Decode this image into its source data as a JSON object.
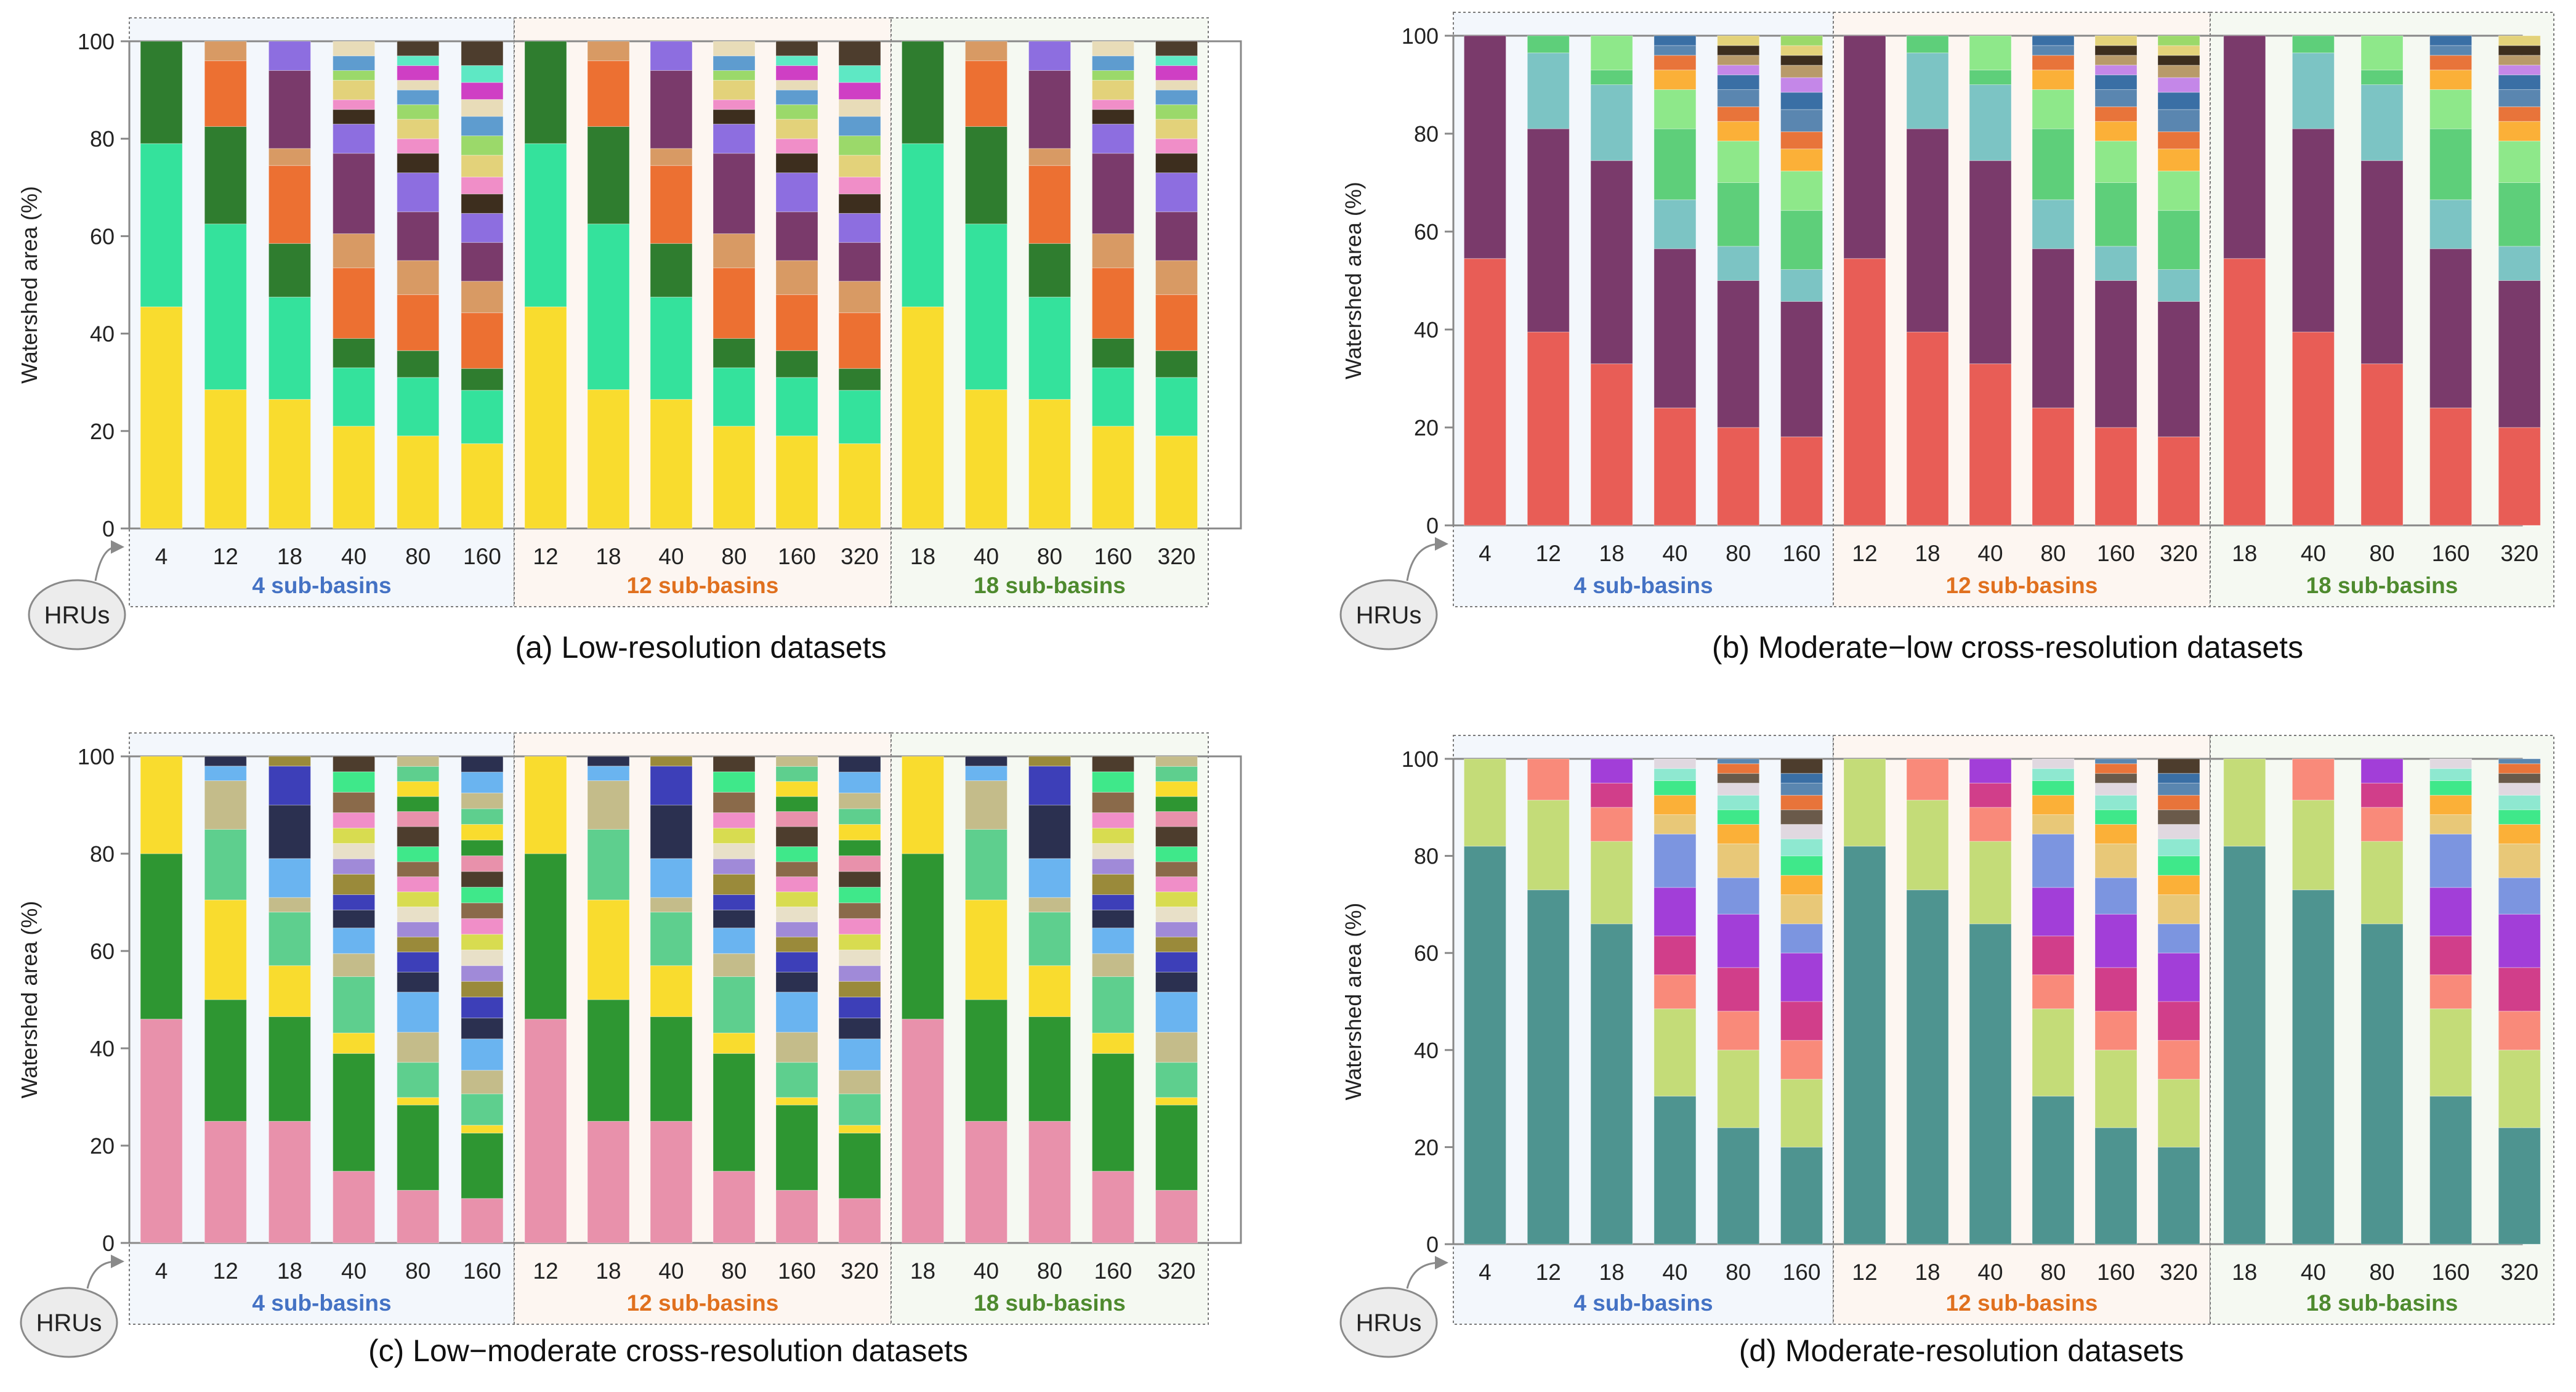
{
  "panels": [
    {
      "id": "a",
      "caption": "(a) Low-resolution datasets",
      "ylabel": "Watershed area (%)",
      "yticks": [
        0,
        20,
        40,
        60,
        80,
        100
      ],
      "ylim": [
        0,
        100
      ],
      "hru_badge": "HRUs",
      "groups": [
        {
          "label": "4 sub-basins",
          "color": "#4472c4",
          "bg": "#f3f7fc",
          "hrus": [
            "4",
            "12",
            "18",
            "40",
            "80",
            "160"
          ]
        },
        {
          "label": "12 sub-basins",
          "color": "#e0701e",
          "bg": "#fdf6f1",
          "hrus": [
            "12",
            "18",
            "40",
            "80",
            "160",
            "320"
          ]
        },
        {
          "label": "18 sub-basins",
          "color": "#4e8a2e",
          "bg": "#f5f9f2",
          "hrus": [
            "18",
            "40",
            "80",
            "160",
            "320"
          ]
        }
      ],
      "palette": [
        "#f9dc2e",
        "#34e29c",
        "#2f7d2f",
        "#ec7032",
        "#d89a64",
        "#7a3a6b",
        "#8d6ee0",
        "#3d2e1e",
        "#f08ec8",
        "#e3d27a",
        "#9bd96a",
        "#5e9ccf",
        "#e8dcb8",
        "#cf3fc4",
        "#5ee8c4",
        "#4d3d2d"
      ],
      "bars": [
        [
          45.5,
          33.5,
          21
        ],
        [
          28.5,
          34,
          20,
          13.5,
          4
        ],
        [
          26.5,
          21,
          11,
          16,
          3.5,
          16,
          6
        ],
        [
          21,
          12,
          6,
          14.5,
          7,
          16.5,
          6,
          3,
          2,
          4,
          2,
          3,
          3
        ],
        [
          19,
          12,
          5.5,
          11.5,
          7,
          10,
          8,
          4,
          3,
          4,
          3,
          3,
          2,
          3,
          2,
          3
        ],
        [
          17.5,
          11,
          4.5,
          11.5,
          6.5,
          8,
          6,
          4,
          3.5,
          4.5,
          4,
          4,
          3.5,
          3.5,
          3.5,
          5
        ]
      ]
    },
    {
      "id": "b",
      "caption": "(b) Moderate−low cross-resolution datasets",
      "ylabel": "Watershed area (%)",
      "yticks": [
        0,
        20,
        40,
        60,
        80,
        100
      ],
      "ylim": [
        0,
        100
      ],
      "hru_badge": "HRUs",
      "groups": [
        {
          "label": "4 sub-basins",
          "color": "#4472c4",
          "bg": "#f3f7fc",
          "hrus": [
            "4",
            "12",
            "18",
            "40",
            "80",
            "160"
          ]
        },
        {
          "label": "12 sub-basins",
          "color": "#e0701e",
          "bg": "#fdf6f1",
          "hrus": [
            "12",
            "18",
            "40",
            "80",
            "160",
            "320"
          ]
        },
        {
          "label": "18 sub-basins",
          "color": "#4e8a2e",
          "bg": "#f5f9f2",
          "hrus": [
            "18",
            "40",
            "80",
            "160",
            "320"
          ]
        }
      ],
      "palette": [
        "#e85d56",
        "#7a3a6b",
        "#7cc4c4",
        "#5ecf7a",
        "#8ee88a",
        "#fbb038",
        "#e8743a",
        "#5a86b0",
        "#3a6fa5",
        "#c487e8",
        "#b89a6a",
        "#3d2e1e",
        "#e3d27a",
        "#9bd96a",
        "#f08ec8",
        "#4d3d2d"
      ],
      "bars": [
        [
          54.5,
          45.5
        ],
        [
          39.5,
          41.5,
          15.5,
          3.5
        ],
        [
          33,
          41.5,
          15.5,
          3,
          7
        ],
        [
          24,
          32.5,
          10,
          14.5,
          8,
          4,
          3,
          2,
          2
        ],
        [
          20,
          30,
          7,
          13,
          8.5,
          4,
          3,
          3.5,
          3,
          2,
          2,
          2,
          2
        ],
        [
          18,
          27.5,
          6.5,
          12,
          8,
          4.5,
          3.5,
          4.5,
          3.5,
          3,
          2.5,
          2,
          2,
          2
        ]
      ]
    },
    {
      "id": "c",
      "caption": "(c) Low−moderate cross-resolution datasets",
      "ylabel": "Watershed area (%)",
      "yticks": [
        0,
        20,
        40,
        60,
        80,
        100
      ],
      "ylim": [
        0,
        100
      ],
      "hru_badge": "HRUs",
      "groups": [
        {
          "label": "4 sub-basins",
          "color": "#4472c4",
          "bg": "#f3f7fc",
          "hrus": [
            "4",
            "12",
            "18",
            "40",
            "80",
            "160"
          ]
        },
        {
          "label": "12 sub-basins",
          "color": "#e0701e",
          "bg": "#fdf6f1",
          "hrus": [
            "12",
            "18",
            "40",
            "80",
            "160",
            "320"
          ]
        },
        {
          "label": "18 sub-basins",
          "color": "#4e8a2e",
          "bg": "#f5f9f2",
          "hrus": [
            "18",
            "40",
            "80",
            "160",
            "320"
          ]
        }
      ],
      "palette": [
        "#e891ab",
        "#2e9632",
        "#f9dc2e",
        "#5ecf8e",
        "#c4bc8a",
        "#6ab4f0",
        "#2b3050",
        "#3d3fb8",
        "#9a8a3a",
        "#a08ad8",
        "#e8e0c8",
        "#d8dc50",
        "#f08ec8",
        "#8a6a4a",
        "#3fe88a",
        "#4d3d2d"
      ],
      "bars": [
        [
          46,
          34,
          20
        ],
        [
          25,
          25,
          20.5,
          14.5,
          10,
          3,
          2
        ],
        [
          25,
          21.5,
          10.5,
          11,
          3,
          8,
          11,
          8,
          2
        ],
        [
          14,
          23,
          4,
          11,
          4.5,
          5,
          3.5,
          3,
          4,
          3,
          3,
          3,
          3,
          4,
          4,
          3
        ],
        [
          10.5,
          17,
          1.5,
          7,
          6,
          8,
          4,
          4,
          3,
          3,
          3,
          3,
          3,
          3,
          3,
          4,
          3,
          3,
          3,
          3,
          2
        ],
        [
          8.5,
          12.5,
          1.5,
          6,
          4.5,
          6,
          4,
          4,
          3,
          3,
          3,
          3,
          3,
          3,
          3,
          3,
          3,
          3,
          3,
          3,
          3,
          4,
          3
        ]
      ]
    },
    {
      "id": "d",
      "caption": "(d) Moderate-resolution datasets",
      "ylabel": "Watershed area (%)",
      "yticks": [
        0,
        20,
        40,
        60,
        80,
        100
      ],
      "ylim": [
        0,
        100
      ],
      "hru_badge": "HRUs",
      "groups": [
        {
          "label": "4 sub-basins",
          "color": "#4472c4",
          "bg": "#f3f7fc",
          "hrus": [
            "4",
            "12",
            "18",
            "40",
            "80",
            "160"
          ]
        },
        {
          "label": "12 sub-basins",
          "color": "#e0701e",
          "bg": "#fdf6f1",
          "hrus": [
            "12",
            "18",
            "40",
            "80",
            "160",
            "320"
          ]
        },
        {
          "label": "18 sub-basins",
          "color": "#4e8a2e",
          "bg": "#f5f9f2",
          "hrus": [
            "18",
            "40",
            "80",
            "160",
            "320"
          ]
        }
      ],
      "palette": [
        "#4e9490",
        "#c4dc78",
        "#f98a7a",
        "#d13e8a",
        "#a23ed8",
        "#7c95e0",
        "#e8c878",
        "#fbb038",
        "#3fe88a",
        "#8ee8d0",
        "#e0d8e0",
        "#6a5a4a",
        "#e8743a",
        "#5a86b0",
        "#3a6fa5",
        "#4d3d2d"
      ],
      "bars": [
        [
          82,
          18
        ],
        [
          73,
          18.5,
          8.5
        ],
        [
          66,
          17,
          7,
          5,
          5
        ],
        [
          30.5,
          18,
          7,
          8,
          10,
          11,
          4,
          4,
          3,
          2.5,
          2
        ],
        [
          24,
          16,
          8,
          9,
          11,
          7.5,
          7,
          4,
          3,
          3,
          2.5,
          2,
          2,
          1
        ],
        [
          20,
          14,
          8,
          8,
          10,
          6,
          6,
          4,
          4,
          3.5,
          3,
          3,
          3,
          2.5,
          2,
          3
        ]
      ]
    }
  ],
  "chart_data": [
    {
      "type": "bar",
      "stacked": true,
      "title": "(a) Low-resolution datasets",
      "xlabel": "HRUs",
      "ylabel": "Watershed area (%)",
      "ylim": [
        0,
        100
      ],
      "categories": [
        "4 sub-basins / 4 HRUs",
        "4 sub-basins / 12 HRUs",
        "4 sub-basins / 18 HRUs",
        "4 sub-basins / 40 HRUs",
        "4 sub-basins / 80 HRUs",
        "4 sub-basins / 160 HRUs",
        "12 sub-basins / 12 HRUs",
        "12 sub-basins / 18 HRUs",
        "12 sub-basins / 40 HRUs",
        "12 sub-basins / 80 HRUs",
        "12 sub-basins / 160 HRUs",
        "12 sub-basins / 320 HRUs",
        "18 sub-basins / 18 HRUs",
        "18 sub-basins / 40 HRUs",
        "18 sub-basins / 80 HRUs",
        "18 sub-basins / 160 HRUs",
        "18 sub-basins / 320 HRUs"
      ],
      "note": "Each bar stacks the watershed-area share (%) of its HRU classes; bar segments listed bottom-to-top in panels[0].bars and repeated for the 12 and 18 sub-basin groups."
    },
    {
      "type": "bar",
      "stacked": true,
      "title": "(b) Moderate−low cross-resolution datasets",
      "xlabel": "HRUs",
      "ylabel": "Watershed area (%)",
      "ylim": [
        0,
        100
      ],
      "categories": [
        "4 sub-basins / 4 HRUs",
        "4 sub-basins / 12 HRUs",
        "4 sub-basins / 18 HRUs",
        "4 sub-basins / 40 HRUs",
        "4 sub-basins / 80 HRUs",
        "4 sub-basins / 160 HRUs",
        "12 sub-basins / 12 HRUs",
        "12 sub-basins / 18 HRUs",
        "12 sub-basins / 40 HRUs",
        "12 sub-basins / 80 HRUs",
        "12 sub-basins / 160 HRUs",
        "12 sub-basins / 320 HRUs",
        "18 sub-basins / 18 HRUs",
        "18 sub-basins / 40 HRUs",
        "18 sub-basins / 80 HRUs",
        "18 sub-basins / 160 HRUs",
        "18 sub-basins / 320 HRUs"
      ],
      "note": "Segment values in panels[1].bars (bottom-to-top)."
    },
    {
      "type": "bar",
      "stacked": true,
      "title": "(c) Low−moderate cross-resolution datasets",
      "xlabel": "HRUs",
      "ylabel": "Watershed area (%)",
      "ylim": [
        0,
        100
      ],
      "categories": [
        "4 sub-basins / 4 HRUs",
        "4 sub-basins / 12 HRUs",
        "4 sub-basins / 18 HRUs",
        "4 sub-basins / 40 HRUs",
        "4 sub-basins / 80 HRUs",
        "4 sub-basins / 160 HRUs",
        "12 sub-basins / 12 HRUs",
        "12 sub-basins / 18 HRUs",
        "12 sub-basins / 40 HRUs",
        "12 sub-basins / 80 HRUs",
        "12 sub-basins / 160 HRUs",
        "12 sub-basins / 320 HRUs",
        "18 sub-basins / 18 HRUs",
        "18 sub-basins / 40 HRUs",
        "18 sub-basins / 80 HRUs",
        "18 sub-basins / 160 HRUs",
        "18 sub-basins / 320 HRUs"
      ],
      "note": "Segment values in panels[2].bars (bottom-to-top)."
    },
    {
      "type": "bar",
      "stacked": true,
      "title": "(d) Moderate-resolution datasets",
      "xlabel": "HRUs",
      "ylabel": "Watershed area (%)",
      "ylim": [
        0,
        100
      ],
      "categories": [
        "4 sub-basins / 4 HRUs",
        "4 sub-basins / 12 HRUs",
        "4 sub-basins / 18 HRUs",
        "4 sub-basins / 40 HRUs",
        "4 sub-basins / 80 HRUs",
        "4 sub-basins / 160 HRUs",
        "12 sub-basins / 12 HRUs",
        "12 sub-basins / 18 HRUs",
        "12 sub-basins / 40 HRUs",
        "12 sub-basins / 80 HRUs",
        "12 sub-basins / 160 HRUs",
        "12 sub-basins / 320 HRUs",
        "18 sub-basins / 18 HRUs",
        "18 sub-basins / 40 HRUs",
        "18 sub-basins / 80 HRUs",
        "18 sub-basins / 160 HRUs",
        "18 sub-basins / 320 HRUs"
      ],
      "note": "Segment values in panels[3].bars (bottom-to-top)."
    }
  ]
}
